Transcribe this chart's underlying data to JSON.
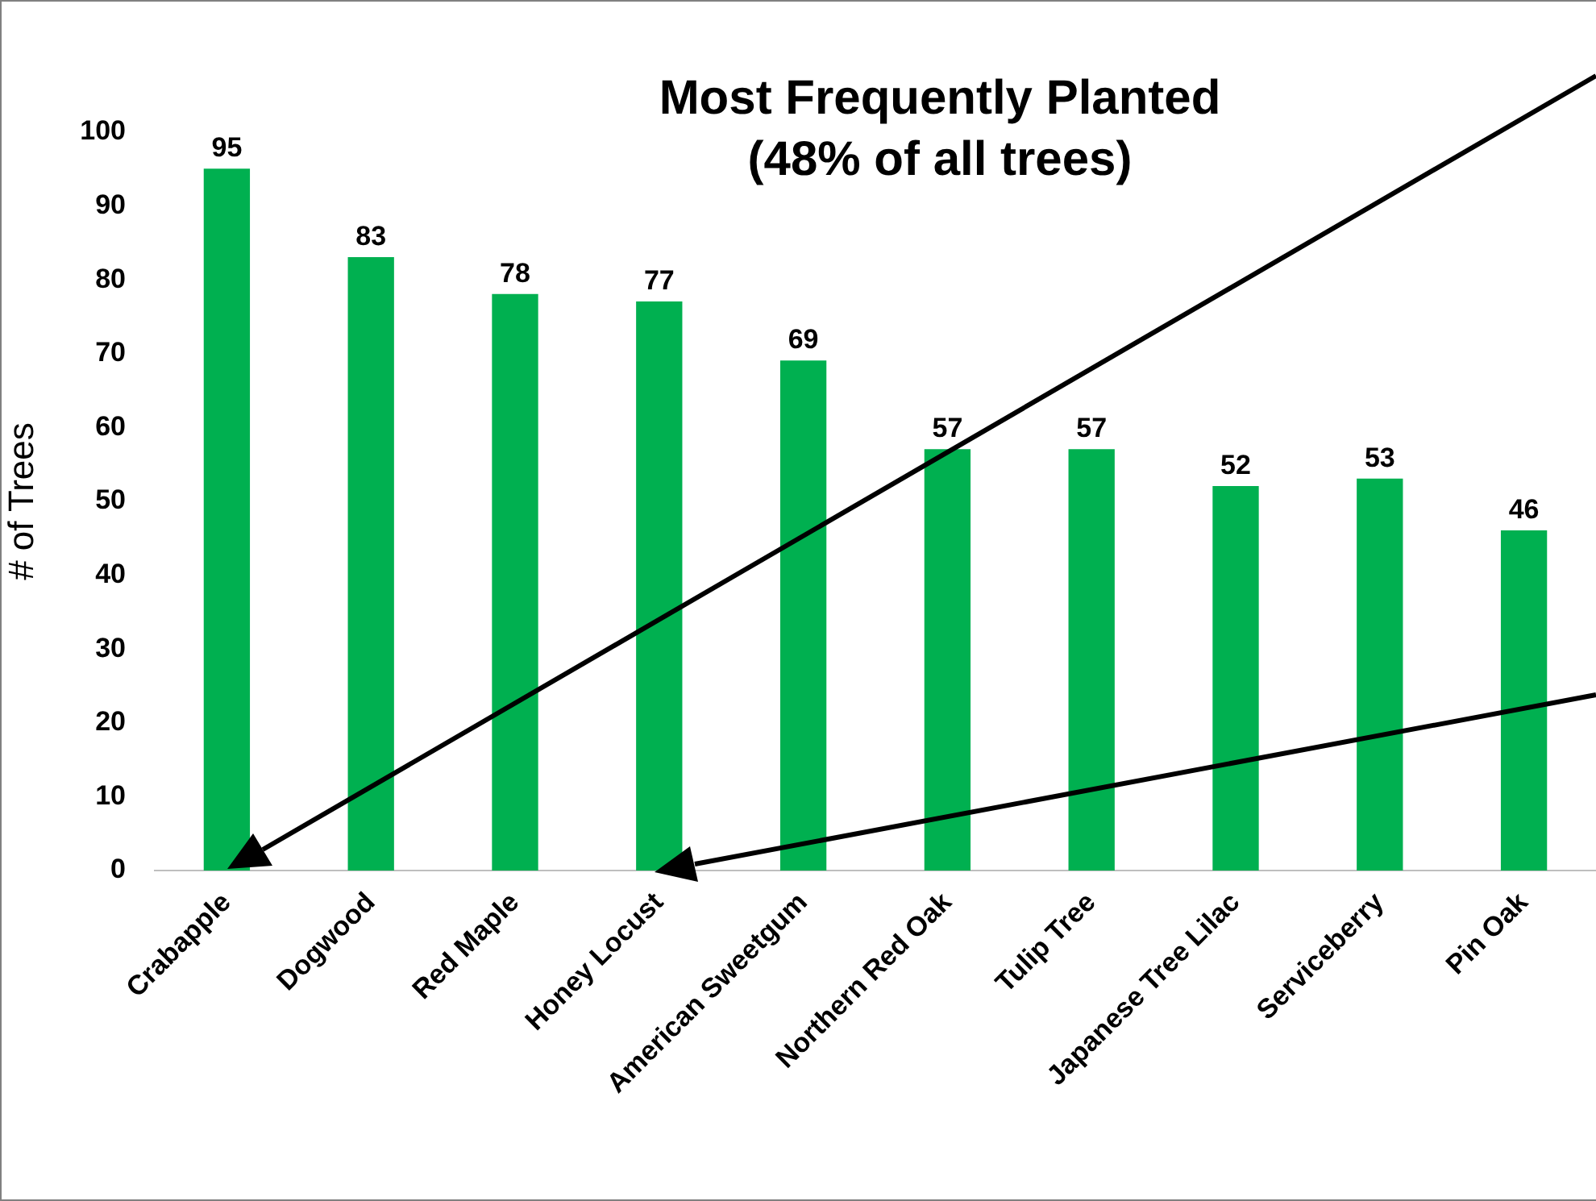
{
  "chart_data": {
    "type": "bar",
    "title": "Most Frequently Planted\n(48% of all trees)",
    "ylabel": "# of Trees",
    "categories": [
      "Crabapple",
      "Dogwood",
      "Red Maple",
      "Honey Locust",
      "American Sweetgum",
      "Northern Red Oak",
      "Tulip Tree",
      "Japanese Tree Lilac",
      "Serviceberry",
      "Pin Oak"
    ],
    "values": [
      95,
      83,
      78,
      77,
      69,
      57,
      57,
      52,
      53,
      46
    ],
    "color": "#00b050",
    "ylim": [
      0,
      100
    ],
    "yticks": [
      0,
      10,
      20,
      30,
      40,
      50,
      60,
      70,
      80,
      90,
      100
    ],
    "grid": false,
    "legend": false,
    "data_labels": true
  }
}
